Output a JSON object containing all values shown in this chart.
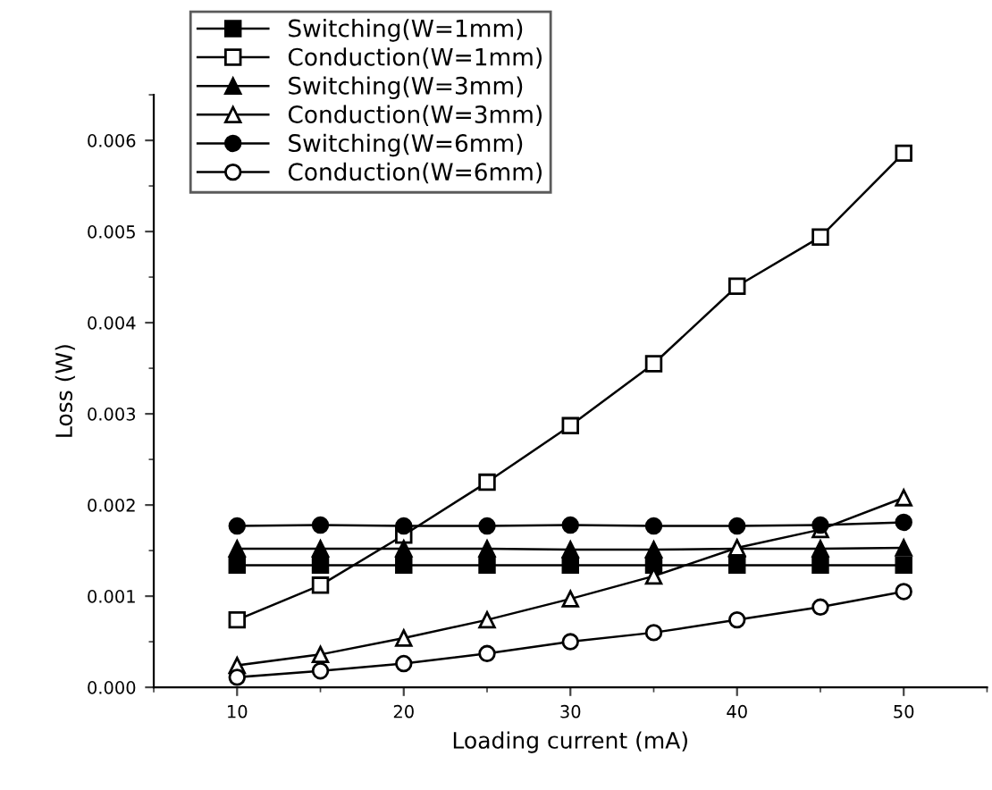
{
  "chart_data": {
    "type": "line",
    "xlabel": "Loading current (mA)",
    "ylabel": "Loss (W)",
    "x": [
      10,
      15,
      20,
      25,
      30,
      35,
      40,
      45,
      50
    ],
    "xlim": [
      5,
      55
    ],
    "xticks": [
      10,
      20,
      30,
      40,
      50
    ],
    "ylim": [
      0,
      0.0065
    ],
    "yticks": [
      {
        "value": 0,
        "label": "0.000"
      },
      {
        "value": 0.001,
        "label": "0.001"
      },
      {
        "value": 0.002,
        "label": "0.002"
      },
      {
        "value": 0.003,
        "label": "0.003"
      },
      {
        "value": 0.004,
        "label": "0.004"
      },
      {
        "value": 0.005,
        "label": "0.005"
      },
      {
        "value": 0.006,
        "label": "0.006"
      }
    ],
    "grid": false,
    "legend": "top left",
    "line_style": "solid",
    "series": [
      {
        "name": "Switching(W=1mm)",
        "color": "#000000",
        "marker": "square",
        "values": [
          0.00134,
          0.00134,
          0.00134,
          0.00134,
          0.00134,
          0.00134,
          0.00134,
          0.00134,
          0.00134
        ]
      },
      {
        "name": "Conduction(W=1mm)",
        "color": "#000000",
        "marker": "square",
        "values": [
          0.00074,
          0.00112,
          0.00167,
          0.00225,
          0.00287,
          0.00355,
          0.0044,
          0.00494,
          0.00586
        ]
      },
      {
        "name": "Switching(W=3mm)",
        "color": "#000000",
        "marker": "triangle",
        "values": [
          0.00152,
          0.00152,
          0.00152,
          0.00152,
          0.00151,
          0.00151,
          0.00152,
          0.00152,
          0.00153
        ]
      },
      {
        "name": "Conduction(W=3mm)",
        "color": "#000000",
        "marker": "triangle",
        "values": [
          0.00024,
          0.00036,
          0.00054,
          0.00074,
          0.00097,
          0.00122,
          0.00153,
          0.00173,
          0.00208
        ]
      },
      {
        "name": "Switching(W=6mm)",
        "color": "#000000",
        "marker": "circle",
        "values": [
          0.00177,
          0.00178,
          0.00177,
          0.00177,
          0.00178,
          0.00177,
          0.00177,
          0.00178,
          0.00181
        ]
      },
      {
        "name": "Conduction(W=6mm)",
        "color": "#000000",
        "marker": "circle",
        "values": [
          0.00011,
          0.00018,
          0.00026,
          0.00037,
          0.0005,
          0.0006,
          0.00074,
          0.00088,
          0.00105
        ]
      }
    ]
  }
}
